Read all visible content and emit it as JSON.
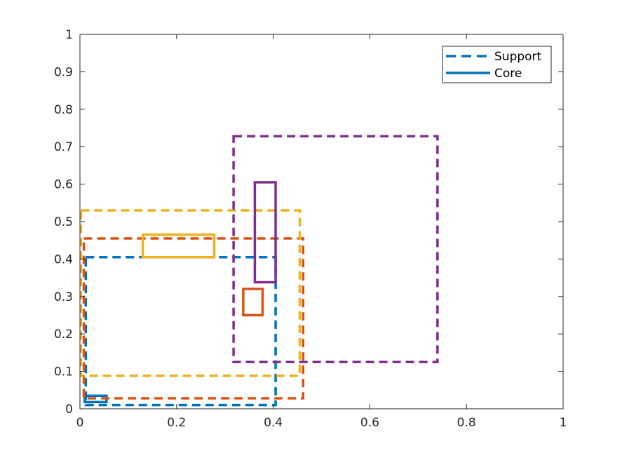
{
  "chart_data": {
    "type": "rectangles",
    "title": "",
    "xlabel": "",
    "ylabel": "",
    "xlim": [
      0,
      1
    ],
    "ylim": [
      0,
      1
    ],
    "x_ticks": [
      0,
      0.2,
      0.4,
      0.6,
      0.8,
      1
    ],
    "x_tick_labels": [
      "0",
      "0.2",
      "0.4",
      "0.6",
      "0.8",
      "1"
    ],
    "y_ticks": [
      0,
      0.1,
      0.2,
      0.3,
      0.4,
      0.5,
      0.6,
      0.7,
      0.8,
      0.9,
      1
    ],
    "y_tick_labels": [
      "0",
      "0.1",
      "0.2",
      "0.3",
      "0.4",
      "0.5",
      "0.6",
      "0.7",
      "0.8",
      "0.9",
      "1"
    ],
    "grid": false,
    "legend_position": "top-right",
    "legend": [
      {
        "label": "Support",
        "style": "dashed",
        "color": "#0072BD"
      },
      {
        "label": "Core",
        "style": "solid",
        "color": "#0072BD"
      }
    ],
    "groups": [
      {
        "color": "#0072BD",
        "support": {
          "x": [
            0.012,
            0.405
          ],
          "y": [
            0.01,
            0.405
          ]
        },
        "core": {
          "x": [
            0.01,
            0.055
          ],
          "y": [
            0.018,
            0.035
          ]
        }
      },
      {
        "color": "#D95319",
        "support": {
          "x": [
            0.008,
            0.462
          ],
          "y": [
            0.028,
            0.455
          ]
        },
        "core": {
          "x": [
            0.338,
            0.378
          ],
          "y": [
            0.25,
            0.32
          ]
        }
      },
      {
        "color": "#EDB120",
        "support": {
          "x": [
            0.002,
            0.455
          ],
          "y": [
            0.088,
            0.53
          ]
        },
        "core": {
          "x": [
            0.13,
            0.278
          ],
          "y": [
            0.405,
            0.465
          ]
        }
      },
      {
        "color": "#7E2F8E",
        "support": {
          "x": [
            0.318,
            0.74
          ],
          "y": [
            0.125,
            0.728
          ]
        },
        "core": {
          "x": [
            0.362,
            0.405
          ],
          "y": [
            0.338,
            0.605
          ]
        }
      }
    ]
  }
}
